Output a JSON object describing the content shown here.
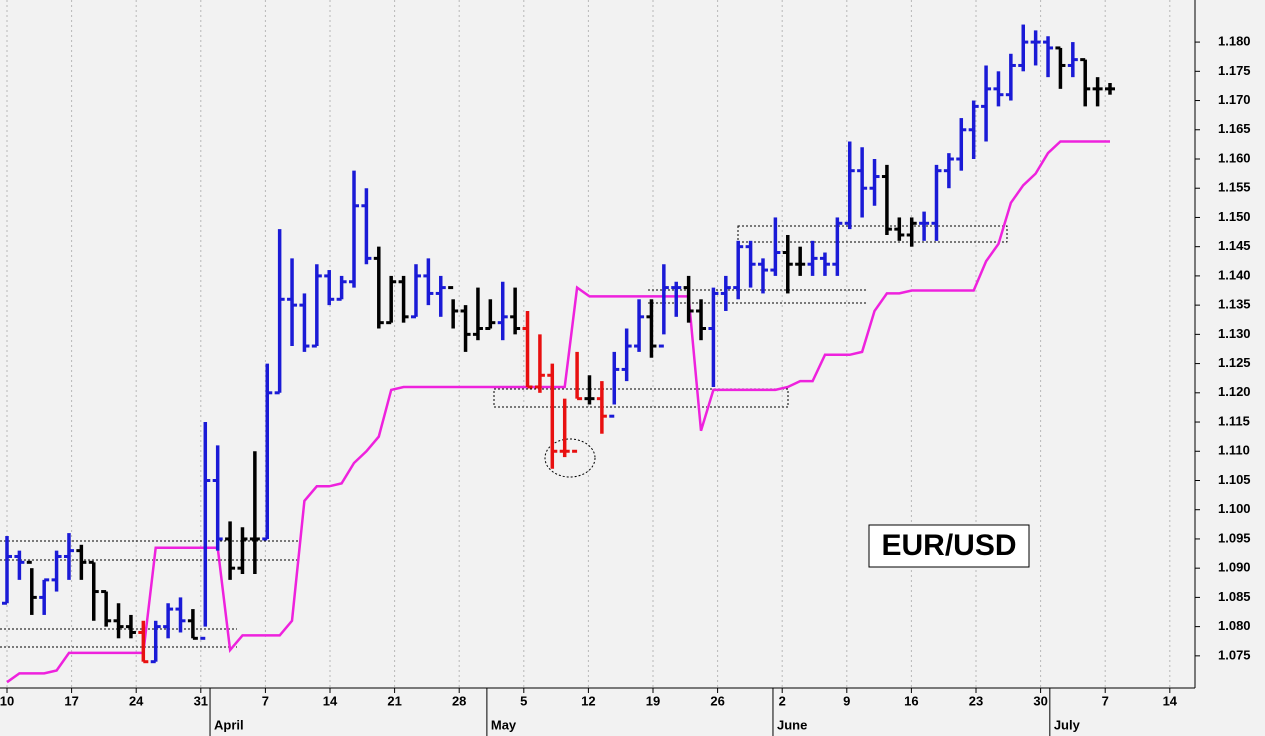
{
  "chart_data": {
    "type": "ohlc",
    "ylim": [
      1.0695,
      1.1872
    ],
    "yticks": [
      1.075,
      {
        "value": 1.08,
        "label": "1.080"
      },
      1.085,
      {
        "value": 1.09,
        "label": "1.090"
      },
      1.095,
      {
        "value": 1.1,
        "label": "1.100"
      },
      1.105,
      {
        "value": 1.11,
        "label": "1.110"
      },
      1.115,
      {
        "value": 1.12,
        "label": "1.120"
      },
      1.125,
      {
        "value": 1.13,
        "label": "1.130"
      },
      1.135,
      {
        "value": 1.14,
        "label": "1.140"
      },
      1.145,
      {
        "value": 1.15,
        "label": "1.150"
      },
      1.155,
      {
        "value": 1.16,
        "label": "1.160"
      },
      1.165,
      {
        "value": 1.17,
        "label": "1.170"
      },
      1.175,
      {
        "value": 1.18,
        "label": "1.180"
      }
    ],
    "xticks": [
      "10",
      "17",
      "24",
      "31",
      "7",
      "14",
      "21",
      "28",
      "5",
      "12",
      "19",
      "26",
      "2",
      "9",
      "16",
      "23",
      "30",
      "7",
      "14"
    ],
    "month_labels": [
      "April",
      "May",
      "June",
      "July"
    ],
    "grid": true,
    "ohlc": {
      "open": [
        1.084,
        1.092,
        1.091,
        1.085,
        1.088,
        1.092,
        1.093,
        1.091,
        1.086,
        1.081,
        1.08,
        1.079,
        1.074,
        1.08,
        1.083,
        1.081,
        1.078,
        1.105,
        1.095,
        1.09,
        1.095,
        1.095,
        1.12,
        1.136,
        1.135,
        1.128,
        1.14,
        1.136,
        1.139,
        1.152,
        1.143,
        1.132,
        1.139,
        1.133,
        1.14,
        1.137,
        1.138,
        1.134,
        1.13,
        1.131,
        1.132,
        1.133,
        1.131,
        1.121,
        1.123,
        1.11,
        1.11,
        1.119,
        1.119,
        1.116,
        1.124,
        1.128,
        1.133,
        1.128,
        1.138,
        1.138,
        1.134,
        1.131,
        1.137,
        1.138,
        1.145,
        1.142,
        1.141,
        1.144,
        1.142,
        1.142,
        1.143,
        1.142,
        1.149,
        1.158,
        1.155,
        1.157,
        1.148,
        1.147,
        1.149,
        1.149,
        1.158,
        1.16,
        1.165,
        1.169,
        1.172,
        1.171,
        1.176,
        1.18,
        1.18,
        1.179,
        1.176,
        1.177,
        1.172,
        1.172
      ],
      "high": [
        1.0955,
        1.093,
        1.09,
        1.088,
        1.093,
        1.096,
        1.094,
        1.091,
        1.086,
        1.084,
        1.082,
        1.081,
        1.081,
        1.084,
        1.085,
        1.083,
        1.115,
        1.111,
        1.098,
        1.097,
        1.11,
        1.125,
        1.148,
        1.143,
        1.137,
        1.142,
        1.141,
        1.14,
        1.158,
        1.155,
        1.145,
        1.14,
        1.14,
        1.142,
        1.143,
        1.14,
        1.136,
        1.135,
        1.138,
        1.136,
        1.139,
        1.138,
        1.134,
        1.13,
        1.125,
        1.119,
        1.127,
        1.123,
        1.122,
        1.127,
        1.131,
        1.136,
        1.136,
        1.142,
        1.139,
        1.14,
        1.136,
        1.138,
        1.14,
        1.146,
        1.146,
        1.143,
        1.15,
        1.147,
        1.145,
        1.146,
        1.144,
        1.15,
        1.163,
        1.162,
        1.16,
        1.159,
        1.15,
        1.15,
        1.151,
        1.159,
        1.161,
        1.167,
        1.17,
        1.176,
        1.175,
        1.178,
        1.183,
        1.182,
        1.181,
        1.179,
        1.18,
        1.177,
        1.174,
        1.173
      ],
      "low": [
        1.084,
        1.088,
        1.082,
        1.082,
        1.086,
        1.088,
        1.088,
        1.081,
        1.08,
        1.078,
        1.078,
        1.074,
        1.074,
        1.078,
        1.079,
        1.078,
        1.08,
        1.093,
        1.088,
        1.089,
        1.089,
        1.095,
        1.12,
        1.128,
        1.127,
        1.128,
        1.135,
        1.136,
        1.138,
        1.142,
        1.131,
        1.132,
        1.132,
        1.133,
        1.135,
        1.133,
        1.131,
        1.127,
        1.129,
        1.131,
        1.129,
        1.13,
        1.121,
        1.12,
        1.107,
        1.109,
        1.119,
        1.118,
        1.113,
        1.118,
        1.122,
        1.127,
        1.126,
        1.13,
        1.133,
        1.132,
        1.129,
        1.121,
        1.134,
        1.136,
        1.138,
        1.137,
        1.14,
        1.137,
        1.14,
        1.14,
        1.14,
        1.14,
        1.148,
        1.15,
        1.152,
        1.147,
        1.146,
        1.145,
        1.146,
        1.146,
        1.155,
        1.158,
        1.16,
        1.163,
        1.169,
        1.17,
        1.175,
        1.176,
        1.174,
        1.172,
        1.174,
        1.169,
        1.169,
        1.171
      ],
      "close": [
        1.092,
        1.091,
        1.085,
        1.088,
        1.092,
        1.093,
        1.091,
        1.086,
        1.081,
        1.08,
        1.079,
        1.074,
        1.08,
        1.083,
        1.081,
        1.078,
        1.105,
        1.095,
        1.09,
        1.095,
        1.095,
        1.12,
        1.136,
        1.135,
        1.128,
        1.14,
        1.136,
        1.139,
        1.152,
        1.143,
        1.132,
        1.139,
        1.133,
        1.14,
        1.137,
        1.138,
        1.134,
        1.13,
        1.131,
        1.132,
        1.133,
        1.131,
        1.121,
        1.123,
        1.11,
        1.11,
        1.119,
        1.119,
        1.116,
        1.124,
        1.128,
        1.133,
        1.128,
        1.138,
        1.138,
        1.134,
        1.131,
        1.137,
        1.138,
        1.145,
        1.142,
        1.141,
        1.144,
        1.142,
        1.142,
        1.143,
        1.142,
        1.149,
        1.158,
        1.155,
        1.157,
        1.148,
        1.147,
        1.149,
        1.149,
        1.158,
        1.16,
        1.165,
        1.169,
        1.172,
        1.171,
        1.176,
        1.18,
        1.18,
        1.179,
        1.176,
        1.177,
        1.172,
        1.172,
        1.172
      ],
      "colors": [
        "#1a1ad6",
        "#1a1ad6",
        "#000000",
        "#1a1ad6",
        "#1a1ad6",
        "#1a1ad6",
        "#000000",
        "#000000",
        "#000000",
        "#000000",
        "#000000",
        "#e81010",
        "#1a1ad6",
        "#1a1ad6",
        "#1a1ad6",
        "#000000",
        "#1a1ad6",
        "#1a1ad6",
        "#000000",
        "#000000",
        "#000000",
        "#1a1ad6",
        "#1a1ad6",
        "#1a1ad6",
        "#1a1ad6",
        "#1a1ad6",
        "#1a1ad6",
        "#1a1ad6",
        "#1a1ad6",
        "#1a1ad6",
        "#000000",
        "#000000",
        "#000000",
        "#1a1ad6",
        "#1a1ad6",
        "#1a1ad6",
        "#000000",
        "#000000",
        "#000000",
        "#000000",
        "#1a1ad6",
        "#000000",
        "#e81010",
        "#e81010",
        "#e81010",
        "#e81010",
        "#e81010",
        "#000000",
        "#e81010",
        "#1a1ad6",
        "#1a1ad6",
        "#1a1ad6",
        "#000000",
        "#1a1ad6",
        "#1a1ad6",
        "#000000",
        "#000000",
        "#1a1ad6",
        "#1a1ad6",
        "#1a1ad6",
        "#1a1ad6",
        "#1a1ad6",
        "#1a1ad6",
        "#000000",
        "#000000",
        "#1a1ad6",
        "#1a1ad6",
        "#1a1ad6",
        "#1a1ad6",
        "#1a1ad6",
        "#1a1ad6",
        "#000000",
        "#000000",
        "#000000",
        "#1a1ad6",
        "#1a1ad6",
        "#1a1ad6",
        "#1a1ad6",
        "#1a1ad6",
        "#1a1ad6",
        "#1a1ad6",
        "#1a1ad6",
        "#1a1ad6",
        "#1a1ad6",
        "#1a1ad6",
        "#000000",
        "#1a1ad6",
        "#000000",
        "#000000",
        "#000000"
      ]
    },
    "stop": {
      "color": "#ee22dd",
      "values": [
        1.0705,
        1.072,
        1.072,
        1.072,
        1.0725,
        1.0755,
        1.0755,
        1.0755,
        1.0755,
        1.0755,
        1.0755,
        1.0755,
        1.0935,
        1.0935,
        1.0935,
        1.0935,
        1.0935,
        1.0935,
        1.076,
        1.0785,
        1.0785,
        1.0785,
        1.0785,
        1.081,
        1.1015,
        1.104,
        1.104,
        1.1045,
        1.108,
        1.11,
        1.1125,
        1.1205,
        1.121,
        1.121,
        1.121,
        1.121,
        1.121,
        1.121,
        1.121,
        1.121,
        1.121,
        1.121,
        1.121,
        1.121,
        1.121,
        1.121,
        1.138,
        1.1365,
        1.1365,
        1.1365,
        1.1365,
        1.1365,
        1.1365,
        1.1365,
        1.1365,
        1.1365,
        1.1135,
        1.1205,
        1.1205,
        1.1205,
        1.1205,
        1.1205,
        1.1205,
        1.121,
        1.122,
        1.122,
        1.1265,
        1.1265,
        1.1265,
        1.127,
        1.134,
        1.137,
        1.137,
        1.1375,
        1.1375,
        1.1375,
        1.1375,
        1.1375,
        1.1375,
        1.1425,
        1.1455,
        1.1525,
        1.1555,
        1.1575,
        1.161,
        1.163,
        1.163,
        1.163,
        1.163,
        1.163
      ]
    },
    "annotations": [
      "EUR/USD"
    ]
  }
}
